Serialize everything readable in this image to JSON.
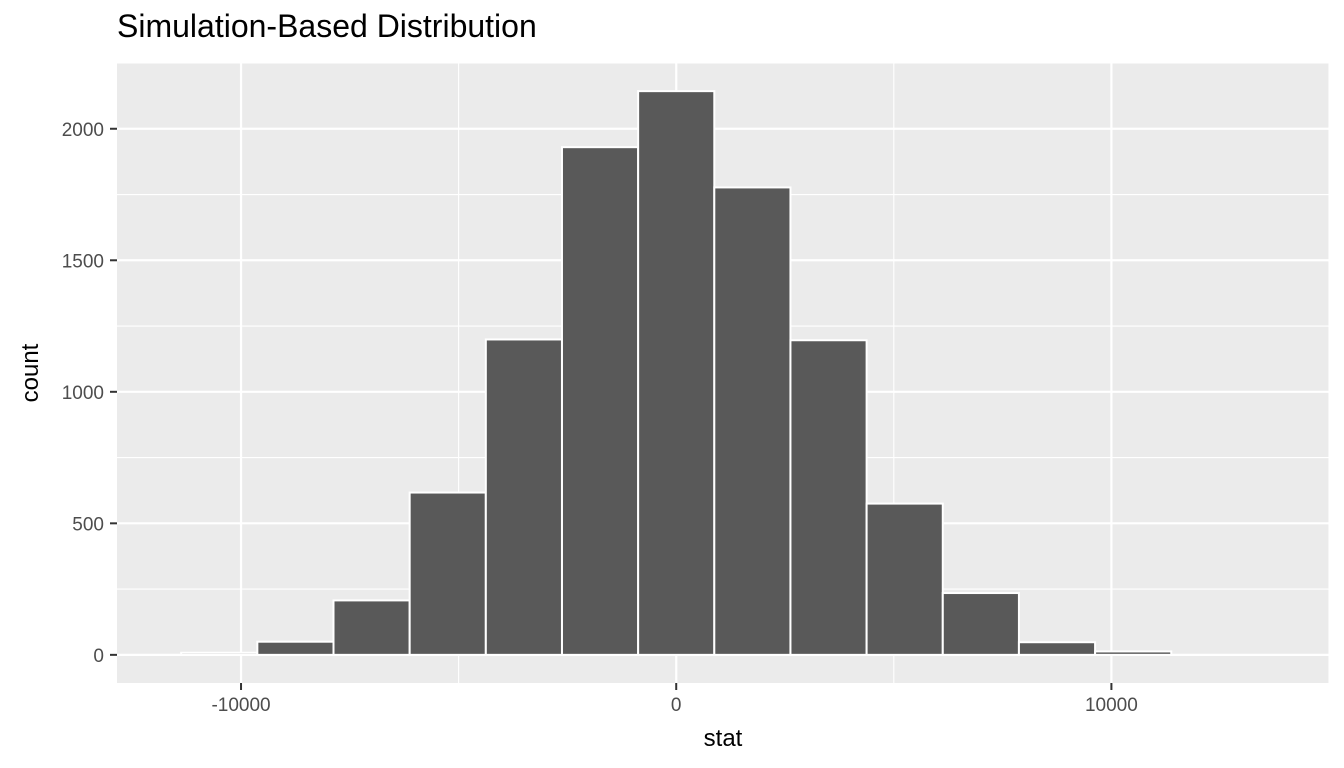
{
  "chart_data": {
    "type": "bar",
    "title": "Simulation-Based Distribution",
    "xlabel": "stat",
    "ylabel": "count",
    "x_ticks": [
      -10000,
      0,
      10000
    ],
    "x_tick_labels": [
      "-10000",
      "0",
      "10000"
    ],
    "y_ticks": [
      0,
      500,
      1000,
      1500,
      2000
    ],
    "y_tick_labels": [
      "0",
      "500",
      "1000",
      "1500",
      "2000"
    ],
    "xlim": [
      -12850,
      15000
    ],
    "ylim": [
      -107,
      2250
    ],
    "bin_width": 1750,
    "bins": [
      {
        "x": -10500,
        "count": 8
      },
      {
        "x": -8750,
        "count": 50
      },
      {
        "x": -7000,
        "count": 207
      },
      {
        "x": -5250,
        "count": 617
      },
      {
        "x": -3500,
        "count": 1199
      },
      {
        "x": -1750,
        "count": 1930
      },
      {
        "x": 0,
        "count": 2143
      },
      {
        "x": 1750,
        "count": 1777
      },
      {
        "x": 3500,
        "count": 1196
      },
      {
        "x": 5250,
        "count": 575
      },
      {
        "x": 7000,
        "count": 235
      },
      {
        "x": 8750,
        "count": 48
      },
      {
        "x": 10500,
        "count": 13
      }
    ],
    "bar_color": "#595959",
    "bar_outline": "#ffffff",
    "panel_background": "#ebebeb",
    "grid_color": "#ffffff",
    "text_color": "#4d4d4d",
    "grid": true
  }
}
